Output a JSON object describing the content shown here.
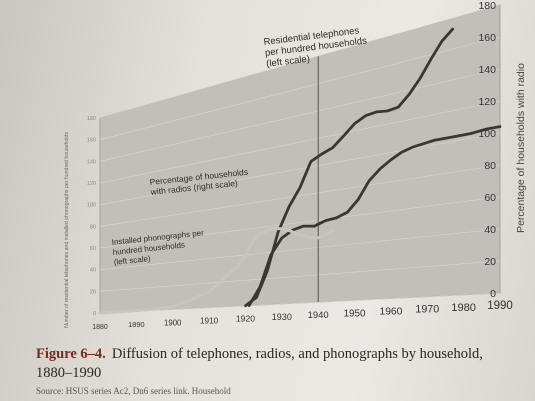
{
  "caption": {
    "figure_label": "Figure 6–4.",
    "text": "Diffusion of telephones, radios, and phonographs by household, 1880–1990",
    "source": "Source: HSUS series Ac2, Dn6 series link. Household"
  },
  "chart_data": {
    "type": "line",
    "xlabel": "",
    "ylabel_left": "Number of residential telephones and installed phonographs per hundred households",
    "ylabel_right": "Percentage of households with radio",
    "x_ticks": [
      1880,
      1890,
      1900,
      1910,
      1920,
      1930,
      1940,
      1950,
      1960,
      1970,
      1980,
      1990
    ],
    "left_ticks": [
      0,
      20,
      40,
      60,
      80,
      100,
      120,
      140,
      160,
      180
    ],
    "right_ticks": [
      0,
      20,
      40,
      60,
      80,
      100,
      120,
      140,
      160,
      180
    ],
    "xlim": [
      1880,
      1990
    ],
    "ylim_left": [
      0,
      180
    ],
    "ylim_right": [
      0,
      180
    ],
    "vline_x": 1940,
    "grid": true,
    "series": [
      {
        "name": "Residential telephones per hundred households (left scale)",
        "axis": "left",
        "color": "#3a3632",
        "x": [
          1920,
          1923,
          1926,
          1929,
          1932,
          1935,
          1938,
          1941,
          1944,
          1947,
          1950,
          1953,
          1956,
          1959,
          1962,
          1965,
          1968,
          1971,
          1974,
          1977
        ],
        "y": [
          0,
          6,
          26,
          55,
          73,
          86,
          104,
          108,
          111,
          118,
          125,
          129,
          130,
          129,
          130,
          137,
          146,
          157,
          167,
          173
        ]
      },
      {
        "name": "Percentage of households with radios (right scale)",
        "axis": "right",
        "color": "#3a3632",
        "x": [
          1921,
          1924,
          1927,
          1930,
          1933,
          1936,
          1939,
          1942,
          1945,
          1948,
          1951,
          1954,
          1957,
          1960,
          1963,
          1966,
          1969,
          1972,
          1975,
          1978,
          1982,
          1986,
          1990
        ],
        "y": [
          0,
          14,
          38,
          50,
          55,
          57,
          56,
          59,
          60,
          63,
          71,
          83,
          90,
          95,
          99,
          101,
          102,
          103,
          103,
          103,
          103,
          104,
          104
        ]
      },
      {
        "name": "Installed phonographs per hundred households (left scale)",
        "axis": "left",
        "color": "#c8c5c0",
        "x": [
          1880,
          1890,
          1900,
          1905,
          1910,
          1915,
          1918,
          1920,
          1922,
          1924,
          1926,
          1928,
          1930,
          1932,
          1934,
          1936,
          1938,
          1940,
          1942,
          1944
        ],
        "y": [
          0,
          0.5,
          2,
          7,
          13,
          25,
          32,
          40,
          50,
          55,
          57,
          58,
          57,
          55,
          52,
          50,
          48,
          47,
          49,
          51
        ]
      }
    ],
    "annotations": [
      {
        "lines": [
          "Residential telephones",
          "per hundred households",
          "(left scale)"
        ]
      },
      {
        "lines": [
          "Percentage of households",
          "with radios (right scale)"
        ]
      },
      {
        "lines": [
          "Installed phonographs per",
          "hundred households",
          "(left scale)"
        ]
      }
    ]
  }
}
